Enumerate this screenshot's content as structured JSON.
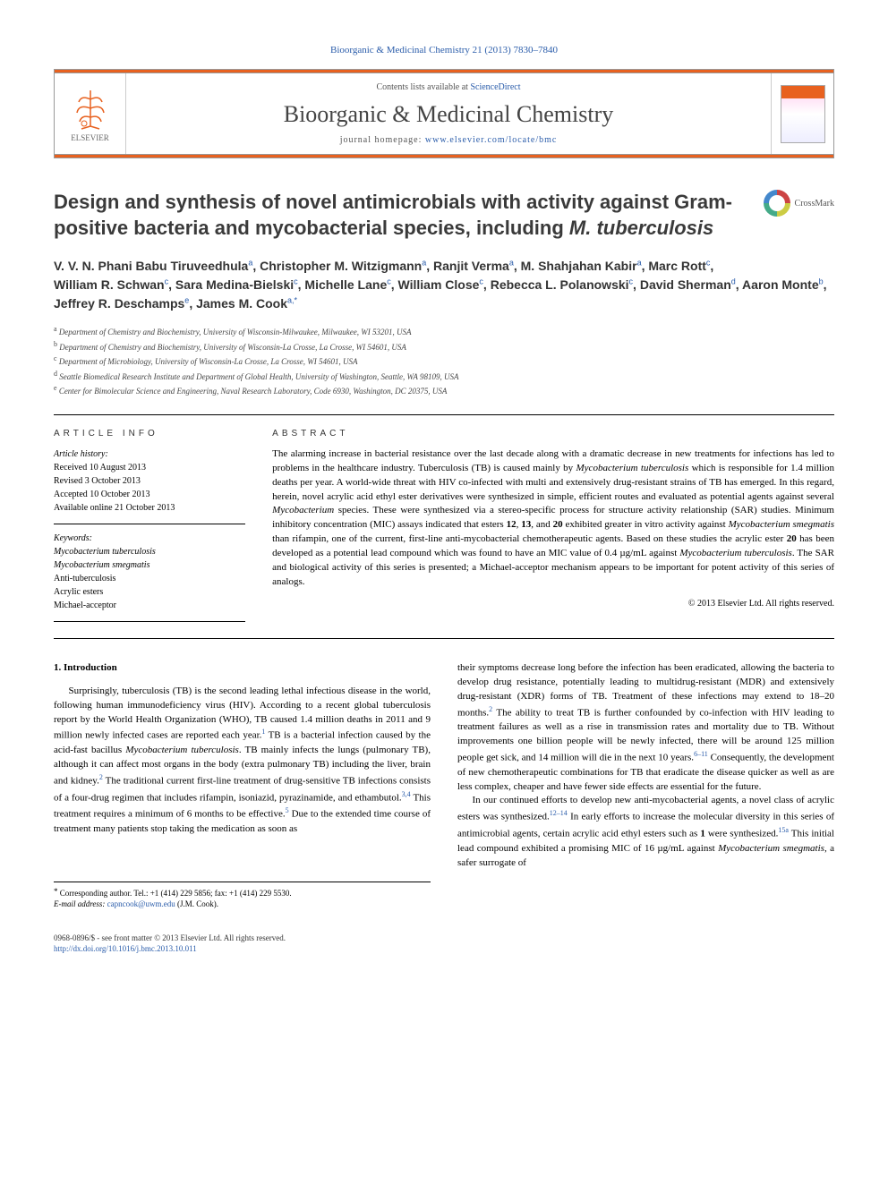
{
  "header": {
    "citation": "Bioorganic & Medicinal Chemistry 21 (2013) 7830–7840",
    "contents_line_prefix": "Contents lists available at ",
    "contents_link": "ScienceDirect",
    "journal_name": "Bioorganic & Medicinal Chemistry",
    "homepage_prefix": "journal homepage: ",
    "homepage": "www.elsevier.com/locate/bmc",
    "elsevier": "ELSEVIER",
    "crossmark": "CrossMark"
  },
  "title": {
    "line1": "Design and synthesis of novel antimicrobials with activity against Gram-positive bacteria and mycobacterial species, including",
    "species": "M. tuberculosis"
  },
  "authors": [
    {
      "name": "V. V. N. Phani Babu Tiruveedhula",
      "aff": "a"
    },
    {
      "name": "Christopher M. Witzigmann",
      "aff": "a"
    },
    {
      "name": "Ranjit Verma",
      "aff": "a"
    },
    {
      "name": "M. Shahjahan Kabir",
      "aff": "a"
    },
    {
      "name": "Marc Rott",
      "aff": "c"
    },
    {
      "name": "William R. Schwan",
      "aff": "c"
    },
    {
      "name": "Sara Medina-Bielski",
      "aff": "c"
    },
    {
      "name": "Michelle Lane",
      "aff": "c"
    },
    {
      "name": "William Close",
      "aff": "c"
    },
    {
      "name": "Rebecca L. Polanowski",
      "aff": "c"
    },
    {
      "name": "David Sherman",
      "aff": "d"
    },
    {
      "name": "Aaron Monte",
      "aff": "b"
    },
    {
      "name": "Jeffrey R. Deschamps",
      "aff": "e"
    },
    {
      "name": "James M. Cook",
      "aff": "a,*"
    }
  ],
  "affiliations": [
    {
      "sup": "a",
      "text": "Department of Chemistry and Biochemistry, University of Wisconsin-Milwaukee, Milwaukee, WI 53201, USA"
    },
    {
      "sup": "b",
      "text": "Department of Chemistry and Biochemistry, University of Wisconsin-La Crosse, La Crosse, WI 54601, USA"
    },
    {
      "sup": "c",
      "text": "Department of Microbiology, University of Wisconsin-La Crosse, La Crosse, WI 54601, USA"
    },
    {
      "sup": "d",
      "text": "Seattle Biomedical Research Institute and Department of Global Health, University of Washington, Seattle, WA 98109, USA"
    },
    {
      "sup": "e",
      "text": "Center for Bimolecular Science and Engineering, Naval Research Laboratory, Code 6930, Washington, DC 20375, USA"
    }
  ],
  "article_info": {
    "heading": "ARTICLE INFO",
    "history_label": "Article history:",
    "received": "Received 10 August 2013",
    "revised": "Revised 3 October 2013",
    "accepted": "Accepted 10 October 2013",
    "online": "Available online 21 October 2013",
    "keywords_label": "Keywords:",
    "keywords": [
      "Mycobacterium tuberculosis",
      "Mycobacterium smegmatis",
      "Anti-tuberculosis",
      "Acrylic esters",
      "Michael-acceptor"
    ]
  },
  "abstract": {
    "heading": "ABSTRACT",
    "text_p1": "The alarming increase in bacterial resistance over the last decade along with a dramatic decrease in new treatments for infections has led to problems in the healthcare industry. Tuberculosis (TB) is caused mainly by ",
    "sp1": "Mycobacterium tuberculosis",
    "text_p2": " which is responsible for 1.4 million deaths per year. A world-wide threat with HIV co-infected with multi and extensively drug-resistant strains of TB has emerged. In this regard, herein, novel acrylic acid ethyl ester derivatives were synthesized in simple, efficient routes and evaluated as potential agents against several ",
    "sp2": "Mycobacterium",
    "text_p3": " species. These were synthesized via a stereo-specific process for structure activity relationship (SAR) studies. Minimum inhibitory concentration (MIC) assays indicated that esters ",
    "b1": "12",
    "text_p4": ", ",
    "b2": "13",
    "text_p5": ", and ",
    "b3": "20",
    "text_p6": " exhibited greater in vitro activity against ",
    "sp3": "Mycobacterium smegmatis",
    "text_p7": " than rifampin, one of the current, first-line anti-mycobacterial chemotherapeutic agents. Based on these studies the acrylic ester ",
    "b4": "20",
    "text_p8": " has been developed as a potential lead compound which was found to have an MIC value of 0.4 µg/mL against ",
    "sp4": "Mycobacterium tuberculosis",
    "text_p9": ". The SAR and biological activity of this series is presented; a Michael-acceptor mechanism appears to be important for potent activity of this series of analogs.",
    "copyright": "© 2013 Elsevier Ltd. All rights reserved."
  },
  "body": {
    "intro_heading": "1. Introduction",
    "col1_p1a": "Surprisingly, tuberculosis (TB) is the second leading lethal infectious disease in the world, following human immunodeficiency virus (HIV). According to a recent global tuberculosis report by the World Health Organization (WHO), TB caused 1.4 million deaths in 2011 and 9 million newly infected cases are reported each year.",
    "col1_r1": "1",
    "col1_p1b": " TB is a bacterial infection caused by the acid-fast bacillus ",
    "col1_sp1": "Mycobacterium tuberculosis",
    "col1_p1c": ". TB mainly infects the lungs (pulmonary TB), although it can affect most organs in the body (extra pulmonary TB) including the liver, brain and kidney.",
    "col1_r2": "2",
    "col1_p1d": " The traditional current first-line treatment of drug-sensitive TB infections consists of a four-drug regimen that includes rifampin, isoniazid, pyrazinamide, and ethambutol.",
    "col1_r3": "3,4",
    "col1_p1e": " This treatment requires a minimum of 6 months to be effective.",
    "col1_r4": "5",
    "col1_p1f": " Due to the extended time course of treatment many patients stop taking the medication as soon as",
    "col2_p1a": "their symptoms decrease long before the infection has been eradicated, allowing the bacteria to develop drug resistance, potentially leading to multidrug-resistant (MDR) and extensively drug-resistant (XDR) forms of TB. Treatment of these infections may extend to 18–20 months.",
    "col2_r1": "2",
    "col2_p1b": " The ability to treat TB is further confounded by co-infection with HIV leading to treatment failures as well as a rise in transmission rates and mortality due to TB. Without improvements one billion people will be newly infected, there will be around 125 million people get sick, and 14 million will die in the next 10 years.",
    "col2_r2": "6–11",
    "col2_p1c": " Consequently, the development of new chemotherapeutic combinations for TB that eradicate the disease quicker as well as are less complex, cheaper and have fewer side effects are essential for the future.",
    "col2_p2a": "In our continued efforts to develop new anti-mycobacterial agents, a novel class of acrylic esters was synthesized.",
    "col2_r3": "12–14",
    "col2_p2b": " In early efforts to increase the molecular diversity in this series of antimicrobial agents, certain acrylic acid ethyl esters such as ",
    "col2_b1": "1",
    "col2_p2c": " were synthesized.",
    "col2_r4": "15a",
    "col2_p2d": " This initial lead compound exhibited a promising MIC of 16 µg/mL against ",
    "col2_sp1": "Mycobacterium smegmatis",
    "col2_p2e": ", a safer surrogate of"
  },
  "corr": {
    "label": "Corresponding author. Tel.: +1 (414) 229 5856; fax: +1 (414) 229 5530.",
    "email_label": "E-mail address:",
    "email": "capncook@uwm.edu",
    "email_suffix": "(J.M. Cook)."
  },
  "footer": {
    "line1": "0968-0896/$ - see front matter © 2013 Elsevier Ltd. All rights reserved.",
    "doi": "http://dx.doi.org/10.1016/j.bmc.2013.10.011"
  },
  "colors": {
    "orange": "#e8611f",
    "blue": "#2a5caa"
  }
}
